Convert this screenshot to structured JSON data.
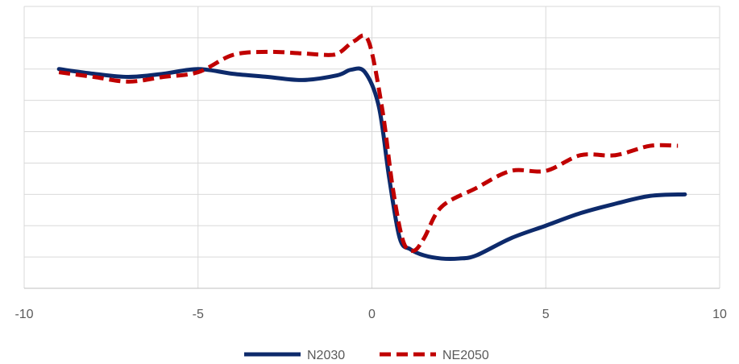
{
  "chart_data": {
    "type": "line",
    "title": "",
    "xlabel": "",
    "ylabel": "",
    "xlim": [
      -10,
      10
    ],
    "ylim": [
      0,
      9
    ],
    "x_ticks": [
      -10,
      -5,
      0,
      5,
      10
    ],
    "x_tick_labels": [
      "-10",
      "-5",
      "0",
      "5",
      "10"
    ],
    "y_tick_labels_shown": false,
    "grid": true,
    "legend_position": "bottom",
    "series": [
      {
        "name": "N2030",
        "color": "#0D2A6B",
        "dash": "solid",
        "x": [
          -9,
          -8,
          -7,
          -6,
          -5,
          -4,
          -3,
          -2,
          -1,
          -0.6,
          -0.2,
          0.2,
          0.5,
          0.8,
          1.1,
          1.5,
          2,
          2.5,
          3,
          4,
          5,
          6,
          7,
          8,
          9
        ],
        "y": [
          7.0,
          6.85,
          6.75,
          6.85,
          7.0,
          6.85,
          6.75,
          6.65,
          6.8,
          6.98,
          6.9,
          5.8,
          3.5,
          1.6,
          1.25,
          1.05,
          0.95,
          0.95,
          1.05,
          1.6,
          2.0,
          2.4,
          2.7,
          2.95,
          3.0
        ]
      },
      {
        "name": "NE2050",
        "color": "#C00000",
        "dash": "dashed",
        "x": [
          -9,
          -8,
          -7,
          -6,
          -5,
          -4,
          -3,
          -2,
          -1.2,
          -0.9,
          -0.5,
          -0.1,
          0.3,
          0.6,
          0.9,
          1.2,
          1.5,
          2,
          3,
          4,
          5,
          6,
          7,
          8,
          8.8
        ],
        "y": [
          6.9,
          6.75,
          6.6,
          6.75,
          6.9,
          7.45,
          7.55,
          7.5,
          7.45,
          7.55,
          7.9,
          7.9,
          5.7,
          3.2,
          1.5,
          1.2,
          1.6,
          2.6,
          3.2,
          3.75,
          3.75,
          4.25,
          4.25,
          4.55,
          4.55
        ]
      }
    ]
  }
}
